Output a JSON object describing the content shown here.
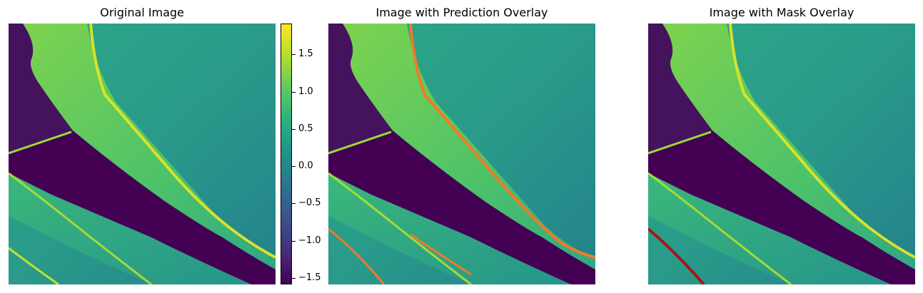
{
  "panels": [
    {
      "title": "Original Image"
    },
    {
      "title": "Image with Prediction Overlay"
    },
    {
      "title": "Image with Mask Overlay"
    }
  ],
  "colorbar": {
    "ticks": [
      "1.5",
      "1.0",
      "0.5",
      "0.0",
      "−0.5",
      "−1.0",
      "−1.5"
    ],
    "range": [
      -1.6,
      1.9
    ],
    "colormap": "viridis"
  },
  "colors": {
    "prediction_overlay": "#f07a28",
    "mask_overlay": "#a81414"
  }
}
